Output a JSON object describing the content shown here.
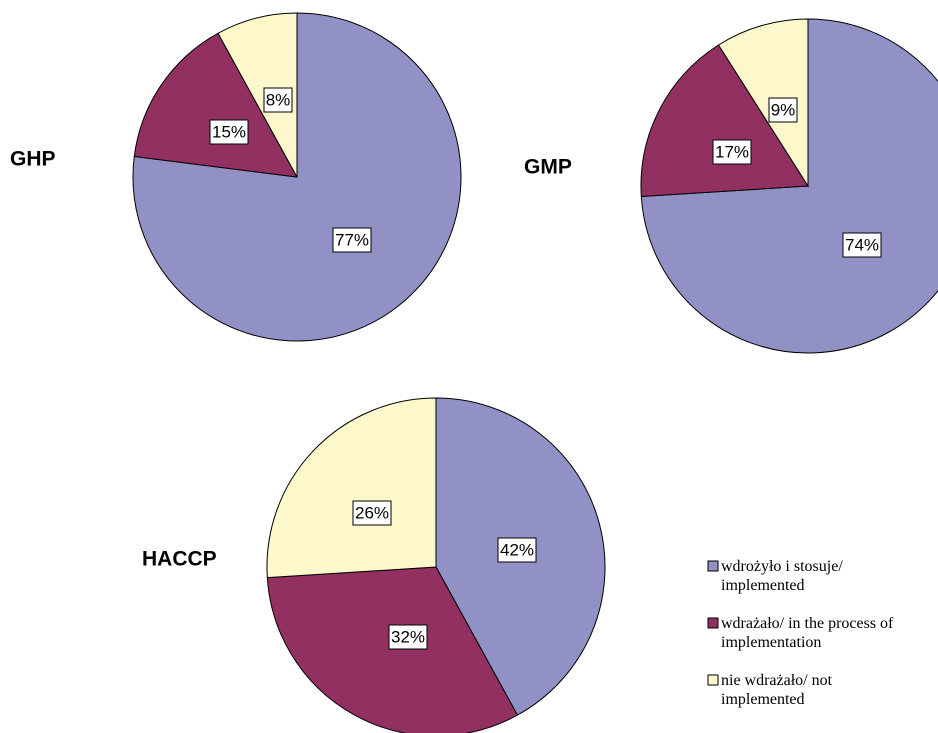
{
  "chart_data": [
    {
      "type": "pie",
      "title": "GHP",
      "slices": [
        {
          "label": "wdrożyło i stosuje/ implemented",
          "value": 77,
          "display": "77%"
        },
        {
          "label": "wdrażało/ in the process of implementation",
          "value": 15,
          "display": "15%"
        },
        {
          "label": "nie wdrażało/ not implemented",
          "value": 8,
          "display": "8%"
        }
      ]
    },
    {
      "type": "pie",
      "title": "GMP",
      "slices": [
        {
          "label": "wdrożyło i stosuje/ implemented",
          "value": 74,
          "display": "74%"
        },
        {
          "label": "wdrażało/ in the process of implementation",
          "value": 17,
          "display": "17%"
        },
        {
          "label": "nie wdrażało/ not implemented",
          "value": 9,
          "display": "9%"
        }
      ]
    },
    {
      "type": "pie",
      "title": "HACCP",
      "slices": [
        {
          "label": "wdrożyło i stosuje/ implemented",
          "value": 42,
          "display": "42%"
        },
        {
          "label": "wdrażało/ in the process of implementation",
          "value": 32,
          "display": "32%"
        },
        {
          "label": "nie wdrażało/ not implemented",
          "value": 26,
          "display": "26%"
        }
      ]
    }
  ],
  "legend": {
    "placement": "bottom-right",
    "items": [
      {
        "line1": "wdrożyło i stosuje/",
        "line2": "implemented",
        "color": "#9191c6"
      },
      {
        "line1": "wdrażało/ in the process of",
        "line2": "implementation",
        "color": "#923062"
      },
      {
        "line1": "nie wdrażało/ not",
        "line2": "implemented",
        "color": "#fcf8cc"
      }
    ]
  },
  "colors": {
    "implemented": "#9191c6",
    "in_process": "#923062",
    "not_implemented": "#fcf8cc",
    "outline": "#000000"
  }
}
